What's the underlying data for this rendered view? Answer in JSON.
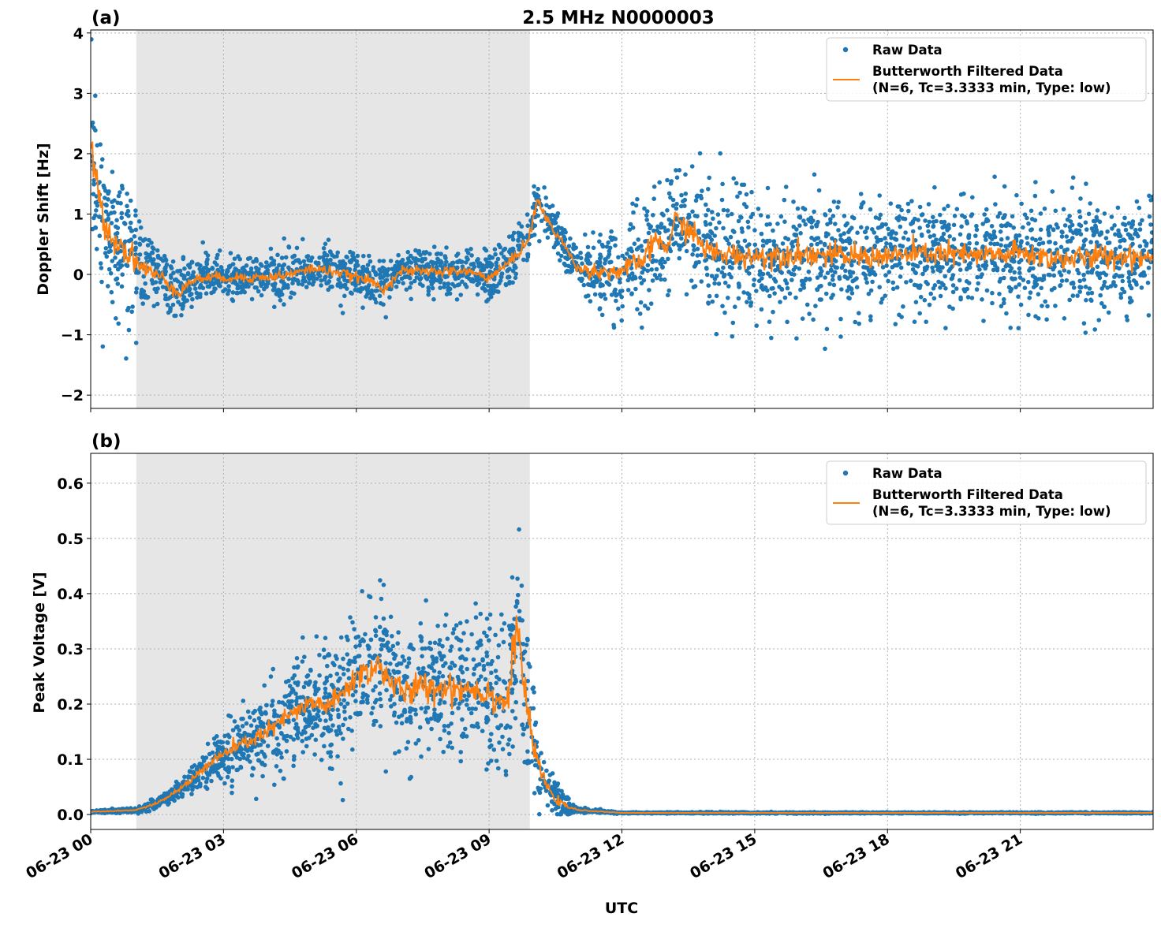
{
  "title": "2.5 MHz N0000003",
  "xlabel": "UTC",
  "colors": {
    "raw": "#1f77b4",
    "filtered": "#ff7f0e",
    "shade": "#e6e6e6",
    "grid": "#b0b0b0"
  },
  "chart_data": [
    {
      "type": "scatter",
      "panel_label": "(a)",
      "title": "2.5 MHz N0000003",
      "xlabel": "UTC",
      "ylabel": "Doppler Shift [Hz]",
      "xlim_hours": [
        0,
        24
      ],
      "ylim": [
        -2.22,
        4.05
      ],
      "yticks": [
        -2,
        -1,
        0,
        1,
        2,
        3,
        4
      ],
      "ytick_labels": [
        "−2",
        "−1",
        "0",
        "1",
        "2",
        "3",
        "4"
      ],
      "xticks_hours": [
        0,
        3,
        6,
        9,
        12,
        15,
        18,
        21
      ],
      "xtick_labels": [
        "06-23 00",
        "06-23 03",
        "06-23 06",
        "06-23 09",
        "06-23 12",
        "06-23 15",
        "06-23 18",
        "06-23 21"
      ],
      "shaded_span_hours": [
        1.03,
        9.92
      ],
      "grid": true,
      "legend_position": "top-right",
      "legend": [
        "Raw Data",
        "Butterworth Filtered Data",
        "(N=6, Tc=3.3333 min, Type: low)"
      ],
      "filtered": {
        "name": "Butterworth Filtered Data",
        "x_hours": [
          0,
          0.1,
          0.3,
          0.5,
          0.8,
          1.0,
          1.3,
          1.6,
          2.0,
          2.3,
          2.6,
          3.0,
          3.5,
          4.0,
          4.5,
          5.0,
          5.5,
          6.0,
          6.3,
          6.6,
          7.0,
          7.5,
          8.0,
          8.5,
          9.0,
          9.3,
          9.6,
          9.9,
          10.1,
          10.3,
          10.6,
          11.0,
          11.5,
          12.0,
          12.5,
          12.8,
          13.0,
          13.2,
          13.5,
          14.0,
          15.0,
          16.0,
          17.0,
          18.0,
          19.0,
          20.0,
          21.0,
          22.0,
          23.0,
          24.0
        ],
        "y": [
          2.2,
          1.6,
          0.9,
          0.6,
          0.4,
          0.25,
          0.05,
          -0.05,
          -0.3,
          -0.1,
          -0.05,
          -0.05,
          -0.05,
          -0.05,
          0.0,
          0.1,
          0.05,
          -0.05,
          -0.1,
          -0.25,
          0.05,
          0.05,
          0.05,
          0.05,
          -0.05,
          0.1,
          0.3,
          0.6,
          1.25,
          0.9,
          0.6,
          0.1,
          0.05,
          0.05,
          0.25,
          0.6,
          0.4,
          0.9,
          0.75,
          0.35,
          0.3,
          0.35,
          0.3,
          0.3,
          0.35,
          0.3,
          0.35,
          0.25,
          0.3,
          0.3
        ]
      },
      "raw": {
        "name": "Raw Data",
        "spread_x_hours": [
          0,
          0.5,
          1.0,
          1.5,
          2.5,
          9.5,
          10.0,
          11.0,
          11.5,
          12.5,
          13.5,
          24.0
        ],
        "spread_y": [
          1.2,
          1.1,
          0.9,
          0.5,
          0.35,
          0.35,
          0.4,
          0.3,
          0.6,
          0.8,
          0.85,
          0.85
        ]
      }
    },
    {
      "type": "scatter",
      "panel_label": "(b)",
      "xlabel": "UTC",
      "ylabel": "Peak Voltage [V]",
      "xlim_hours": [
        0,
        24
      ],
      "ylim": [
        -0.027,
        0.654
      ],
      "yticks": [
        0.0,
        0.1,
        0.2,
        0.3,
        0.4,
        0.5,
        0.6
      ],
      "ytick_labels": [
        "0.0",
        "0.1",
        "0.2",
        "0.3",
        "0.4",
        "0.5",
        "0.6"
      ],
      "xticks_hours": [
        0,
        3,
        6,
        9,
        12,
        15,
        18,
        21
      ],
      "xtick_labels": [
        "06-23 00",
        "06-23 03",
        "06-23 06",
        "06-23 09",
        "06-23 12",
        "06-23 15",
        "06-23 18",
        "06-23 21"
      ],
      "shaded_span_hours": [
        1.03,
        9.92
      ],
      "grid": true,
      "legend_position": "top-right",
      "legend": [
        "Raw Data",
        "Butterworth Filtered Data",
        "(N=6, Tc=3.3333 min, Type: low)"
      ],
      "filtered": {
        "name": "Butterworth Filtered Data",
        "x_hours": [
          0,
          1.0,
          1.5,
          2.0,
          2.5,
          3.0,
          3.5,
          4.0,
          4.5,
          5.0,
          5.5,
          6.0,
          6.5,
          7.0,
          7.5,
          8.0,
          8.5,
          9.0,
          9.4,
          9.65,
          9.8,
          10.0,
          10.3,
          10.6,
          11.0,
          12.0,
          24.0
        ],
        "y": [
          0.005,
          0.008,
          0.02,
          0.045,
          0.08,
          0.11,
          0.13,
          0.15,
          0.18,
          0.2,
          0.2,
          0.25,
          0.27,
          0.22,
          0.23,
          0.23,
          0.23,
          0.22,
          0.2,
          0.35,
          0.22,
          0.12,
          0.05,
          0.02,
          0.008,
          0.003,
          0.003
        ]
      },
      "raw": {
        "name": "Raw Data",
        "spread_x_hours": [
          0,
          1.0,
          2.0,
          3.0,
          5.0,
          6.5,
          9.0,
          9.7,
          10.2,
          11.0,
          12.0,
          24.0
        ],
        "spread_y": [
          0.002,
          0.004,
          0.015,
          0.05,
          0.09,
          0.12,
          0.12,
          0.15,
          0.05,
          0.004,
          0.001,
          0.001
        ]
      }
    }
  ]
}
